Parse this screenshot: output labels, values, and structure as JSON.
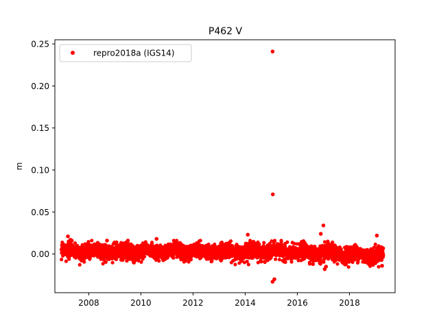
{
  "chart_data": {
    "type": "scatter",
    "title": "P462 V",
    "xlabel": "",
    "ylabel": "m",
    "xlim": [
      2006.7,
      2019.75
    ],
    "ylim": [
      -0.046,
      0.255
    ],
    "xticks": [
      2008,
      2010,
      2012,
      2014,
      2016,
      2018
    ],
    "yticks": [
      0.0,
      0.05,
      0.1,
      0.15,
      0.2,
      0.25
    ],
    "ytick_labels": [
      "0.00",
      "0.05",
      "0.10",
      "0.15",
      "0.20",
      "0.25"
    ],
    "grid": false,
    "legend_position": "top-left",
    "series": [
      {
        "name": "repro2018a (IGS14)",
        "color": "#ff0000",
        "marker": "circle",
        "description_range": {
          "x_start": 2006.95,
          "x_end": 2019.3,
          "typical_spread": 0.006
        },
        "points": [
          [
            2007.2,
            0.021
          ],
          [
            2007.3,
            0.017
          ],
          [
            2008.7,
            0.016
          ],
          [
            2009.5,
            0.016
          ],
          [
            2010.6,
            0.018
          ],
          [
            2014.1,
            0.023
          ],
          [
            2015.05,
            0.241
          ],
          [
            2015.06,
            0.071
          ],
          [
            2015.05,
            -0.033
          ],
          [
            2015.12,
            -0.03
          ],
          [
            2016.9,
            0.024
          ],
          [
            2017.0,
            0.034
          ],
          [
            2017.05,
            -0.018
          ],
          [
            2017.1,
            -0.015
          ],
          [
            2019.05,
            0.022
          ],
          [
            2016.6,
            -0.012
          ],
          [
            2018.9,
            -0.013
          ],
          [
            2019.25,
            -0.014
          ]
        ]
      }
    ]
  }
}
